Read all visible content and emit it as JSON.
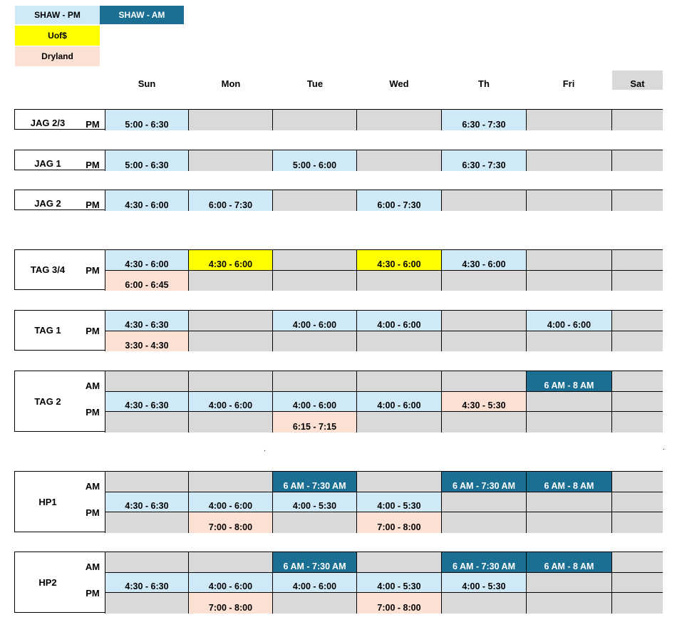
{
  "legend": {
    "shaw_pm": "SHAW - PM",
    "shaw_am": "SHAW - AM",
    "uofs": "Uof$",
    "dryland": "Dryland"
  },
  "colors": {
    "shaw_pm": "#cfe9f7",
    "shaw_am": "#1a6f93",
    "uofs": "#ffff00",
    "dryland": "#fce0d3",
    "empty": "#d9d9d9"
  },
  "days": [
    "Sun",
    "Mon",
    "Tue",
    "Wed",
    "Th",
    "Fri",
    "Sat"
  ],
  "groups": [
    {
      "team": "JAG 2/3",
      "rows": [
        {
          "label": "PM",
          "cells": [
            {
              "text": "5:00 - 6:30",
              "type": "pm"
            },
            {
              "text": "",
              "type": "empty"
            },
            {
              "text": "",
              "type": "empty"
            },
            {
              "text": "",
              "type": "empty"
            },
            {
              "text": "6:30 - 7:30",
              "type": "pm"
            },
            {
              "text": "",
              "type": "empty"
            },
            {
              "text": "",
              "type": "empty"
            }
          ]
        }
      ]
    },
    {
      "team": "JAG 1",
      "rows": [
        {
          "label": "PM",
          "cells": [
            {
              "text": "5:00 - 6:30",
              "type": "pm"
            },
            {
              "text": "",
              "type": "empty"
            },
            {
              "text": "5:00 - 6:00",
              "type": "pm"
            },
            {
              "text": "",
              "type": "empty"
            },
            {
              "text": "6:30 - 7:30",
              "type": "pm"
            },
            {
              "text": "",
              "type": "empty"
            },
            {
              "text": "",
              "type": "empty"
            }
          ]
        }
      ]
    },
    {
      "team": "JAG 2",
      "rows": [
        {
          "label": "PM",
          "cells": [
            {
              "text": "4:30 - 6:00",
              "type": "pm"
            },
            {
              "text": "6:00 - 7:30",
              "type": "pm"
            },
            {
              "text": "",
              "type": "empty"
            },
            {
              "text": "6:00 - 7:30",
              "type": "pm"
            },
            {
              "text": "",
              "type": "empty"
            },
            {
              "text": "",
              "type": "empty"
            },
            {
              "text": "",
              "type": "empty"
            }
          ]
        }
      ]
    },
    {
      "team": "TAG 3/4",
      "rows": [
        {
          "label": "PM",
          "cells": [
            {
              "text": "4:30 - 6:00",
              "type": "pm"
            },
            {
              "text": "4:30 - 6:00",
              "type": "uof"
            },
            {
              "text": "",
              "type": "empty"
            },
            {
              "text": "4:30 - 6:00",
              "type": "uof"
            },
            {
              "text": "4:30 - 6:00",
              "type": "pm"
            },
            {
              "text": "",
              "type": "empty"
            },
            {
              "text": "",
              "type": "empty"
            }
          ]
        },
        {
          "label": "",
          "cells": [
            {
              "text": "6:00 - 6:45",
              "type": "dry"
            },
            {
              "text": "",
              "type": "empty"
            },
            {
              "text": "",
              "type": "empty"
            },
            {
              "text": "",
              "type": "empty"
            },
            {
              "text": "",
              "type": "empty"
            },
            {
              "text": "",
              "type": "empty"
            },
            {
              "text": "",
              "type": "empty"
            }
          ]
        }
      ]
    },
    {
      "team": "TAG 1",
      "rows": [
        {
          "label": "PM",
          "cells": [
            {
              "text": "4:30 - 6:30",
              "type": "pm"
            },
            {
              "text": "",
              "type": "empty"
            },
            {
              "text": "4:00 - 6:00",
              "type": "pm"
            },
            {
              "text": "4:00 - 6:00",
              "type": "pm"
            },
            {
              "text": "",
              "type": "empty"
            },
            {
              "text": "4:00 - 6:00",
              "type": "pm"
            },
            {
              "text": "",
              "type": "empty"
            }
          ]
        },
        {
          "label": "",
          "cells": [
            {
              "text": "3:30 - 4:30",
              "type": "dry"
            },
            {
              "text": "",
              "type": "empty"
            },
            {
              "text": "",
              "type": "empty"
            },
            {
              "text": "",
              "type": "empty"
            },
            {
              "text": "",
              "type": "empty"
            },
            {
              "text": "",
              "type": "empty"
            },
            {
              "text": "",
              "type": "empty"
            }
          ]
        }
      ]
    },
    {
      "team": "TAG 2",
      "rows": [
        {
          "label": "AM",
          "cells": [
            {
              "text": "",
              "type": "empty"
            },
            {
              "text": "",
              "type": "empty"
            },
            {
              "text": "",
              "type": "empty"
            },
            {
              "text": "",
              "type": "empty"
            },
            {
              "text": "",
              "type": "empty"
            },
            {
              "text": "6 AM - 8 AM",
              "type": "am"
            },
            {
              "text": "",
              "type": "empty"
            }
          ]
        },
        {
          "label": "PM",
          "cells": [
            {
              "text": "4:30 - 6:30",
              "type": "pm"
            },
            {
              "text": "4:00 - 6:00",
              "type": "pm"
            },
            {
              "text": "4:00 - 6:00",
              "type": "pm"
            },
            {
              "text": "4:00 - 6:00",
              "type": "pm"
            },
            {
              "text": "4:30 - 5:30",
              "type": "dry"
            },
            {
              "text": "",
              "type": "empty"
            },
            {
              "text": "",
              "type": "empty"
            }
          ]
        },
        {
          "label": "",
          "cells": [
            {
              "text": "",
              "type": "empty"
            },
            {
              "text": "",
              "type": "empty"
            },
            {
              "text": "6:15 - 7:15",
              "type": "dry"
            },
            {
              "text": "",
              "type": "empty"
            },
            {
              "text": "",
              "type": "empty"
            },
            {
              "text": "",
              "type": "empty"
            },
            {
              "text": "",
              "type": "empty"
            }
          ]
        }
      ]
    },
    {
      "team": "HP1",
      "rows": [
        {
          "label": "AM",
          "cells": [
            {
              "text": "",
              "type": "empty"
            },
            {
              "text": "",
              "type": "empty"
            },
            {
              "text": "6 AM - 7:30 AM",
              "type": "am"
            },
            {
              "text": "",
              "type": "empty"
            },
            {
              "text": "6 AM - 7:30 AM",
              "type": "am"
            },
            {
              "text": "6 AM - 8 AM",
              "type": "am"
            },
            {
              "text": "",
              "type": "empty"
            }
          ]
        },
        {
          "label": "PM",
          "cells": [
            {
              "text": "4:30 - 6:30",
              "type": "pm"
            },
            {
              "text": "4:00 - 6:00",
              "type": "pm"
            },
            {
              "text": "4:00 - 5:30",
              "type": "pm"
            },
            {
              "text": "4:00 - 5:30",
              "type": "pm"
            },
            {
              "text": "",
              "type": "empty"
            },
            {
              "text": "",
              "type": "empty"
            },
            {
              "text": "",
              "type": "empty"
            }
          ]
        },
        {
          "label": "",
          "cells": [
            {
              "text": "",
              "type": "empty"
            },
            {
              "text": "7:00 - 8:00",
              "type": "dry"
            },
            {
              "text": "",
              "type": "empty"
            },
            {
              "text": "7:00 - 8:00",
              "type": "dry"
            },
            {
              "text": "",
              "type": "empty"
            },
            {
              "text": "",
              "type": "empty"
            },
            {
              "text": "",
              "type": "empty"
            }
          ]
        }
      ]
    },
    {
      "team": "HP2",
      "rows": [
        {
          "label": "AM",
          "cells": [
            {
              "text": "",
              "type": "empty"
            },
            {
              "text": "",
              "type": "empty"
            },
            {
              "text": "6 AM - 7:30 AM",
              "type": "am"
            },
            {
              "text": "",
              "type": "empty"
            },
            {
              "text": "6 AM - 7:30 AM",
              "type": "am"
            },
            {
              "text": "6 AM - 8 AM",
              "type": "am"
            },
            {
              "text": "",
              "type": "empty"
            }
          ]
        },
        {
          "label": "PM",
          "cells": [
            {
              "text": "4:30 - 6:30",
              "type": "pm"
            },
            {
              "text": "4:00 - 6:00",
              "type": "pm"
            },
            {
              "text": "4:00 - 6:00",
              "type": "pm"
            },
            {
              "text": "4:00 - 5:30",
              "type": "pm"
            },
            {
              "text": "4:00 - 5:30",
              "type": "pm"
            },
            {
              "text": "",
              "type": "empty"
            },
            {
              "text": "",
              "type": "empty"
            }
          ]
        },
        {
          "label": "",
          "cells": [
            {
              "text": "",
              "type": "empty"
            },
            {
              "text": "7:00 - 8:00",
              "type": "dry"
            },
            {
              "text": "",
              "type": "empty"
            },
            {
              "text": "7:00 - 8:00",
              "type": "dry"
            },
            {
              "text": "",
              "type": "empty"
            },
            {
              "text": "",
              "type": "empty"
            },
            {
              "text": "",
              "type": "empty"
            }
          ]
        }
      ]
    }
  ],
  "stray_marks": [
    ".",
    "."
  ]
}
